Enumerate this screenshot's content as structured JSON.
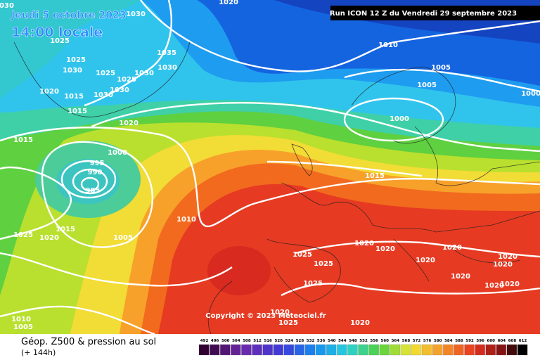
{
  "header": {
    "date": "Jeudi 5 octobre 2023",
    "time": "14:00 locale",
    "run": "Run ICON 12 Z du Vendredi 29 septembre 2023"
  },
  "copyright": "Copyright © 2023 Meteociel.fr",
  "footer": {
    "title": "Géop. Z500 & pression au sol",
    "lead": "(+ 144h)"
  },
  "isobar_labels": [
    1030,
    1030,
    1020,
    1025,
    1025,
    1030,
    1025,
    1035,
    1030,
    1030,
    1025,
    1030,
    1030,
    1020,
    1015,
    1015,
    1020,
    1010,
    1005,
    1005,
    1000,
    1000,
    1015,
    1000,
    995,
    990,
    985,
    1015,
    1010,
    1015,
    1020,
    1025,
    1005,
    1020,
    1020,
    1020,
    1020,
    1020,
    1025,
    1025,
    1020,
    1020,
    1025,
    1020,
    1020,
    1010,
    1005,
    1020,
    1025,
    1020
  ],
  "scale": {
    "values": [
      492,
      496,
      500,
      504,
      508,
      512,
      516,
      520,
      524,
      528,
      532,
      536,
      540,
      544,
      548,
      552,
      556,
      560,
      564,
      568,
      572,
      576,
      580,
      584,
      588,
      592,
      596,
      600,
      604,
      608,
      612
    ]
  }
}
